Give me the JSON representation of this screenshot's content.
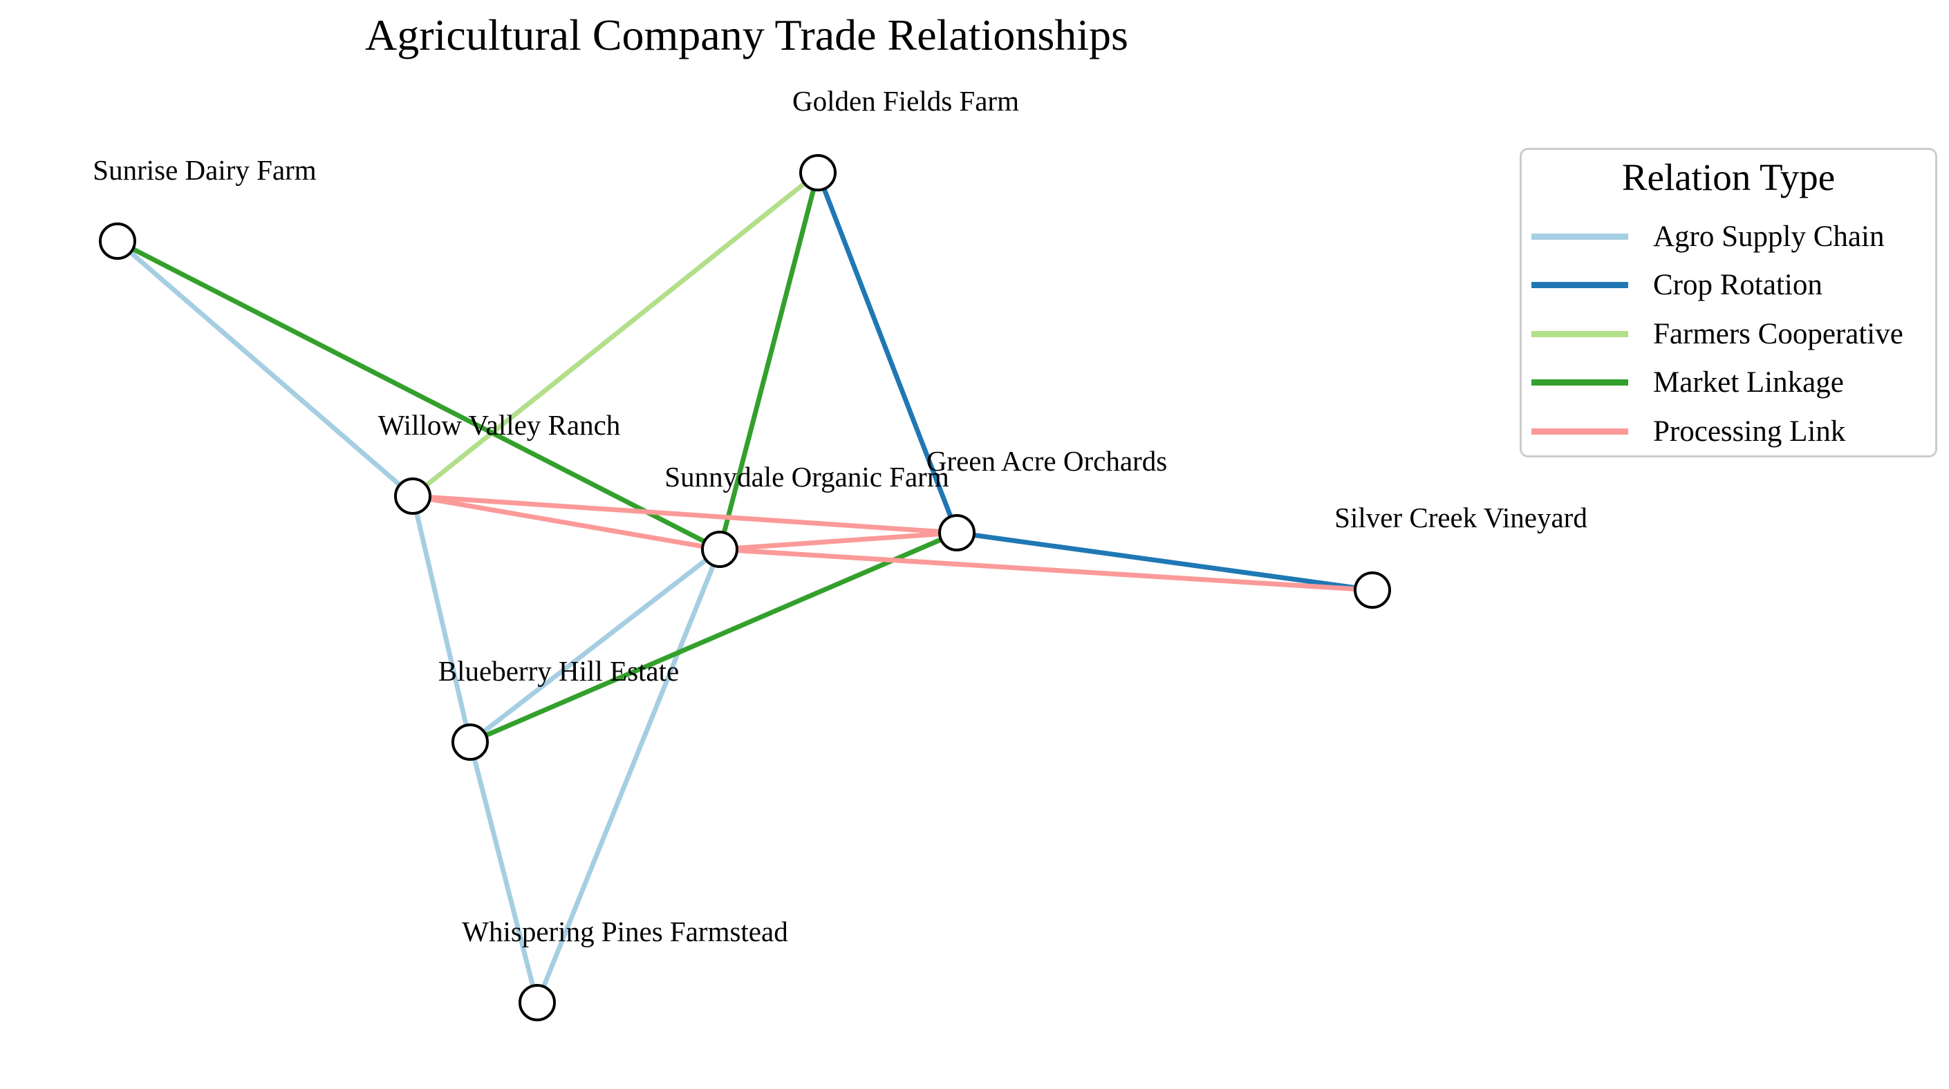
{
  "title": "Agricultural Company Trade Relationships",
  "legend": {
    "title": "Relation Type",
    "items": [
      {
        "label": "Agro Supply Chain",
        "color": "#a6cee3"
      },
      {
        "label": "Crop Rotation",
        "color": "#1f78b4"
      },
      {
        "label": "Farmers Cooperative",
        "color": "#b2df8a"
      },
      {
        "label": "Market Linkage",
        "color": "#33a02c"
      },
      {
        "label": "Processing Link",
        "color": "#fb9a99"
      }
    ]
  },
  "nodes": [
    {
      "id": "golden",
      "label": "Golden Fields Farm"
    },
    {
      "id": "sunrise",
      "label": "Sunrise Dairy Farm"
    },
    {
      "id": "willow",
      "label": "Willow Valley Ranch"
    },
    {
      "id": "sunnydale",
      "label": "Sunnydale Organic Farm"
    },
    {
      "id": "greenacre",
      "label": "Green Acre Orchards"
    },
    {
      "id": "silver",
      "label": "Silver Creek Vineyard"
    },
    {
      "id": "blueberry",
      "label": "Blueberry Hill Estate"
    },
    {
      "id": "whispering",
      "label": "Whispering Pines Farmstead"
    }
  ],
  "edges": [
    {
      "source": "sunrise",
      "target": "willow",
      "type": "Agro Supply Chain"
    },
    {
      "source": "willow",
      "target": "blueberry",
      "type": "Agro Supply Chain"
    },
    {
      "source": "blueberry",
      "target": "sunnydale",
      "type": "Agro Supply Chain"
    },
    {
      "source": "blueberry",
      "target": "whispering",
      "type": "Agro Supply Chain"
    },
    {
      "source": "sunnydale",
      "target": "whispering",
      "type": "Agro Supply Chain"
    },
    {
      "source": "golden",
      "target": "greenacre",
      "type": "Crop Rotation"
    },
    {
      "source": "greenacre",
      "target": "silver",
      "type": "Crop Rotation"
    },
    {
      "source": "golden",
      "target": "willow",
      "type": "Farmers Cooperative"
    },
    {
      "source": "sunrise",
      "target": "sunnydale",
      "type": "Market Linkage"
    },
    {
      "source": "golden",
      "target": "sunnydale",
      "type": "Market Linkage"
    },
    {
      "source": "greenacre",
      "target": "blueberry",
      "type": "Market Linkage"
    },
    {
      "source": "willow",
      "target": "greenacre",
      "type": "Processing Link"
    },
    {
      "source": "willow",
      "target": "sunnydale",
      "type": "Processing Link"
    },
    {
      "source": "sunnydale",
      "target": "greenacre",
      "type": "Processing Link"
    },
    {
      "source": "sunnydale",
      "target": "silver",
      "type": "Processing Link"
    }
  ]
}
